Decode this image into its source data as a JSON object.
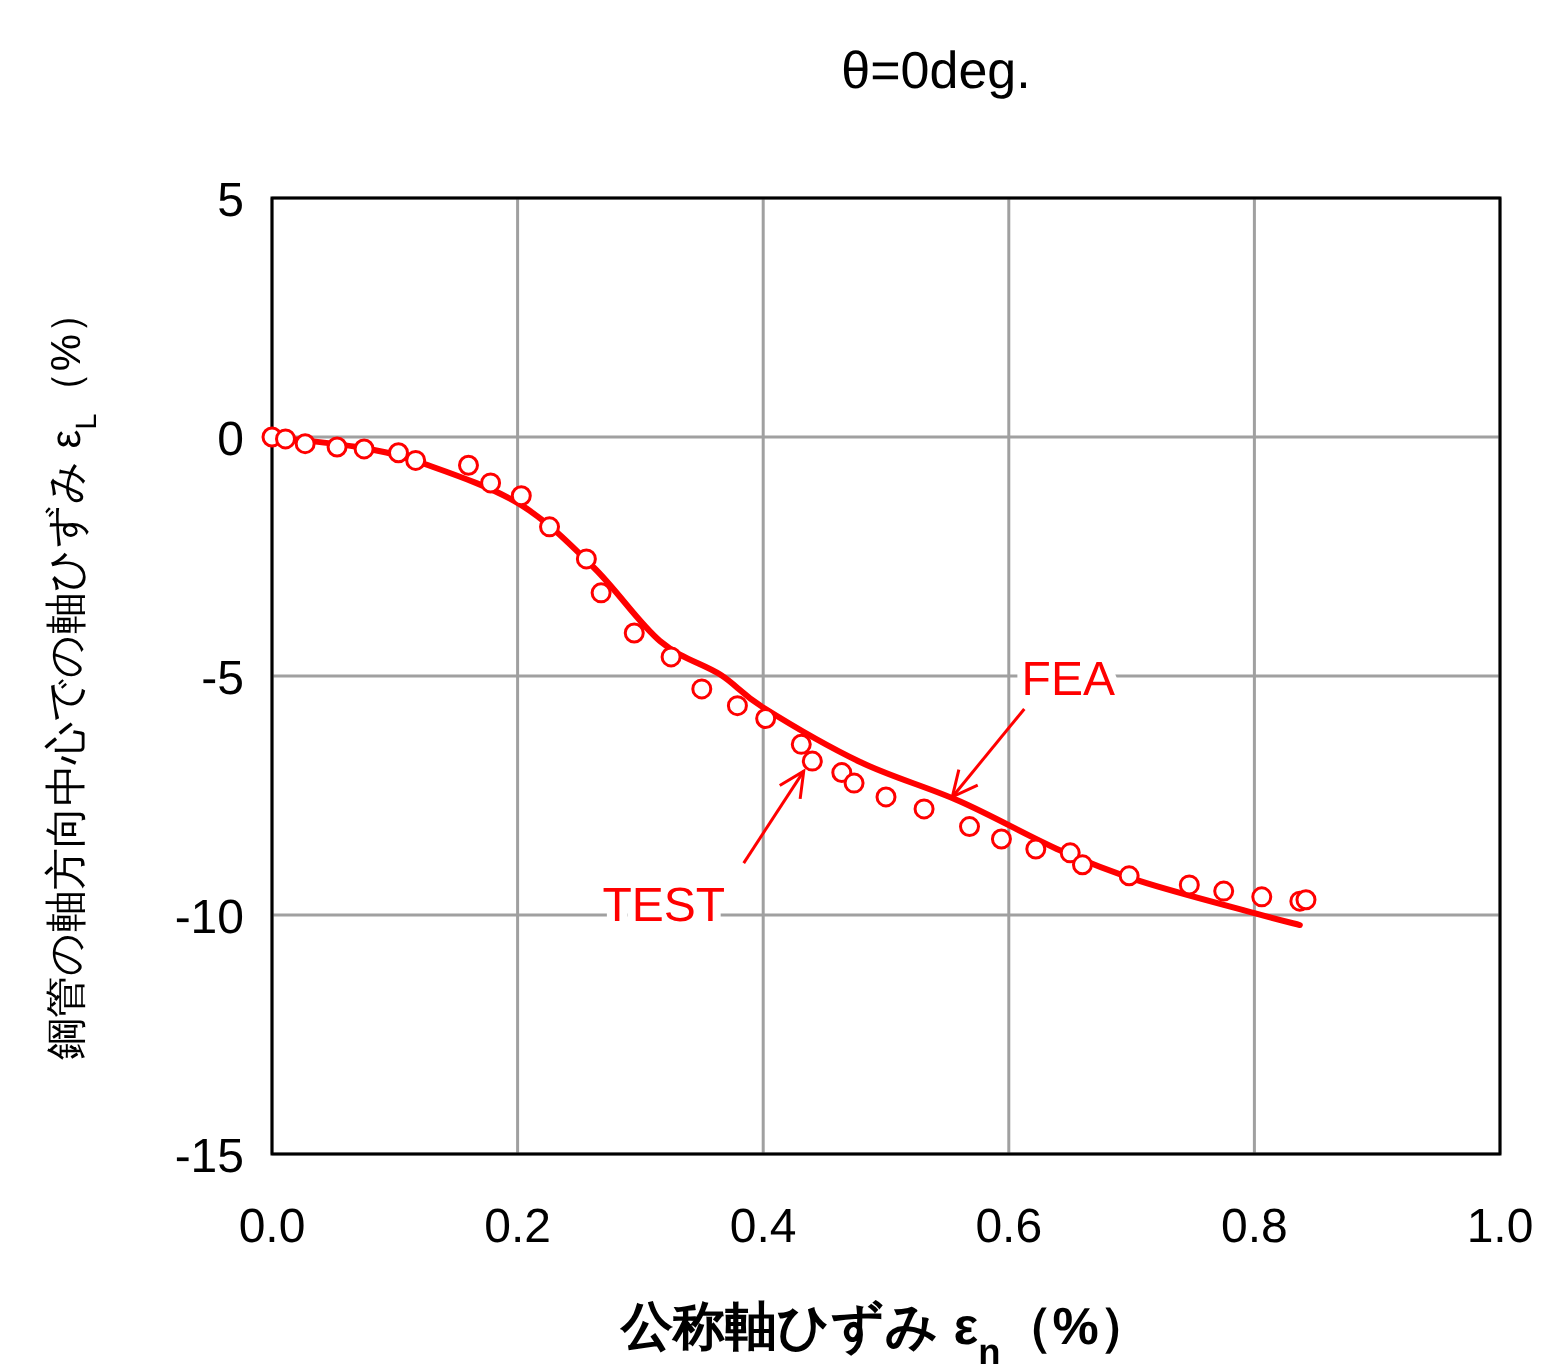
{
  "chart_data": {
    "type": "scatter",
    "title": "θ=0deg.",
    "xlabel": "公称軸ひずみ ε$_{n}$（%）",
    "ylabel": "鋼管の軸方向中心での軸ひずみ ε$_{L}$（%）",
    "xlim": [
      0,
      1
    ],
    "ylim": [
      -15,
      5
    ],
    "xticks": [
      {
        "value": 0,
        "label": "0.0"
      },
      {
        "value": 0.2,
        "label": "0.2"
      },
      {
        "value": 0.4,
        "label": "0.4"
      },
      {
        "value": 0.6,
        "label": "0.6"
      },
      {
        "value": 0.8,
        "label": "0.8"
      },
      {
        "value": 1,
        "label": "1.0"
      }
    ],
    "yticks": [
      -15,
      -10,
      -5,
      0,
      5
    ],
    "grid": true,
    "series": [
      {
        "type": "line",
        "color": "#ff0000",
        "marker": "none",
        "x": [
          0,
          0.072,
          0.125,
          0.202,
          0.262,
          0.316,
          0.365,
          0.4,
          0.479,
          0.56,
          0.642,
          0.707,
          0.8,
          0.837
        ],
        "values": [
          0,
          -0.22,
          -0.57,
          -1.41,
          -2.73,
          -4.27,
          -4.97,
          -5.66,
          -6.8,
          -7.62,
          -8.65,
          -9.29,
          -9.96,
          -10.21
        ]
      },
      {
        "color": "#ff0000",
        "marker": "circle",
        "x": [
          0,
          0.011,
          0.027,
          0.053,
          0.075,
          0.103,
          0.117,
          0.16,
          0.178,
          0.203,
          0.226,
          0.256,
          0.268,
          0.295,
          0.325,
          0.35,
          0.379,
          0.402,
          0.431,
          0.44,
          0.464,
          0.474,
          0.5,
          0.531,
          0.568,
          0.594,
          0.622,
          0.65,
          0.66,
          0.698,
          0.747,
          0.775,
          0.806,
          0.837,
          0.842
        ],
        "values": [
          0,
          -0.04,
          -0.14,
          -0.21,
          -0.25,
          -0.33,
          -0.49,
          -0.59,
          -0.96,
          -1.23,
          -1.88,
          -2.55,
          -3.26,
          -4.1,
          -4.6,
          -5.27,
          -5.62,
          -5.89,
          -6.43,
          -6.78,
          -7.02,
          -7.24,
          -7.53,
          -7.78,
          -8.15,
          -8.41,
          -8.62,
          -8.7,
          -8.95,
          -9.18,
          -9.37,
          -9.5,
          -9.62,
          -9.71,
          -9.68
        ]
      }
    ],
    "annotations": [
      {
        "text": "FEA",
        "x": 0.554,
        "y": -7.53
      },
      {
        "text": "TEST",
        "x": 0.433,
        "y": -6.99
      }
    ]
  }
}
